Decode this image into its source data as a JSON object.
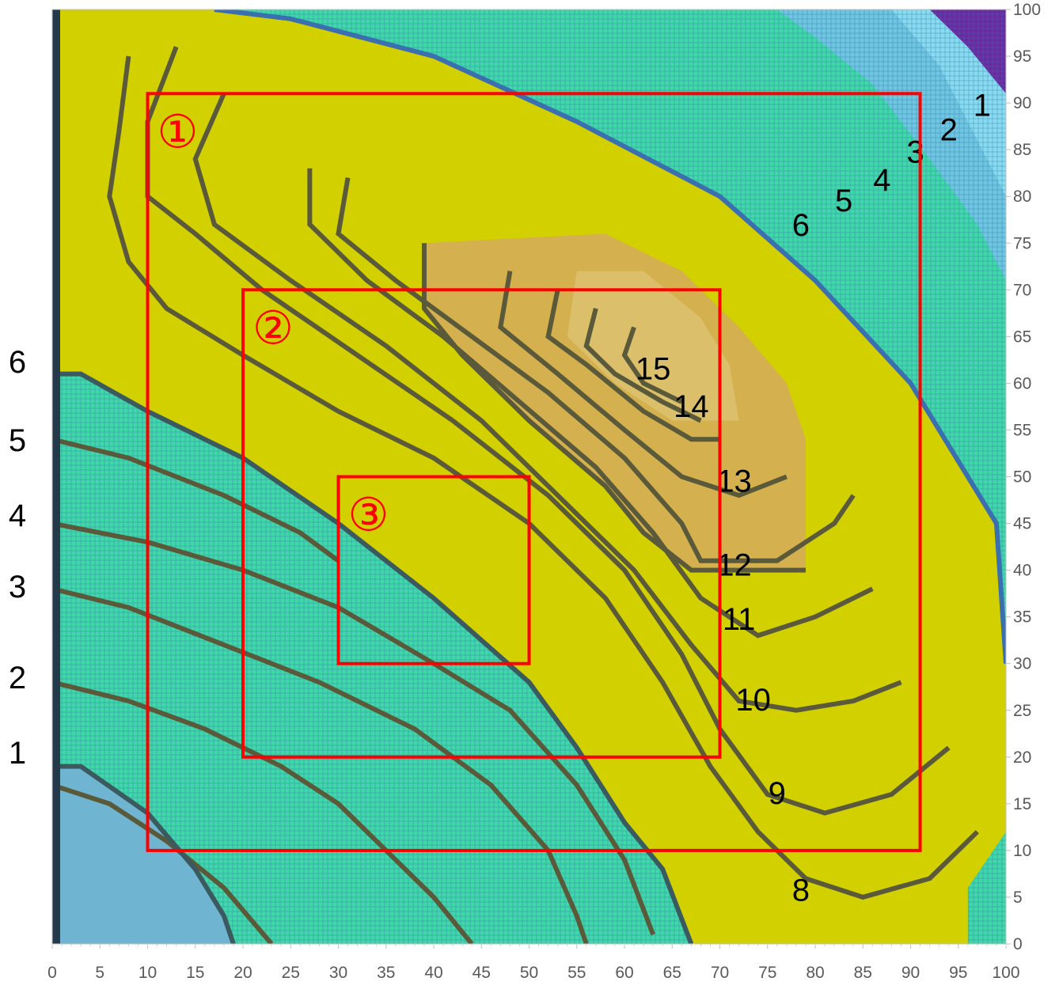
{
  "chart_data": {
    "type": "heatmap",
    "title": "",
    "xlabel": "",
    "ylabel": "",
    "xlim": [
      0,
      100
    ],
    "ylim": [
      0,
      100
    ],
    "x_ticks": [
      "0",
      "5",
      "10",
      "15",
      "20",
      "25",
      "30",
      "35",
      "40",
      "45",
      "50",
      "55",
      "60",
      "65",
      "70",
      "75",
      "80",
      "85",
      "90",
      "95",
      "100"
    ],
    "y_ticks": [
      "0",
      "5",
      "10",
      "15",
      "20",
      "25",
      "30",
      "35",
      "40",
      "45",
      "50",
      "55",
      "60",
      "65",
      "70",
      "75",
      "80",
      "85",
      "90",
      "95",
      "100"
    ],
    "levels": [
      1,
      2,
      3,
      4,
      5,
      6,
      7,
      8,
      9,
      10,
      11,
      12,
      13,
      14,
      15
    ],
    "band_colors": {
      "low_1": "#6fb5d2",
      "low_2_6": "#3fd9a8",
      "mid_7_11": "#d3d000",
      "high_12_15": "#d4b04e",
      "top_light": "#6ec7e0",
      "top_lighter": "#87dcef",
      "top_dark": "#6a2aa0",
      "contour_line": "#5a5a3a"
    },
    "contour_labels": [
      {
        "text": "1",
        "x": 97.5,
        "y": 88.6
      },
      {
        "text": "2",
        "x": 94.0,
        "y": 86.0
      },
      {
        "text": "3",
        "x": 90.5,
        "y": 83.6
      },
      {
        "text": "4",
        "x": 87.0,
        "y": 80.6
      },
      {
        "text": "5",
        "x": 83.0,
        "y": 78.4
      },
      {
        "text": "6",
        "x": 78.5,
        "y": 75.8
      },
      {
        "text": "15",
        "x": 63.0,
        "y": 60.4
      },
      {
        "text": "14",
        "x": 67.0,
        "y": 56.4
      },
      {
        "text": "13",
        "x": 71.5,
        "y": 48.4
      },
      {
        "text": "12",
        "x": 71.5,
        "y": 39.4
      },
      {
        "text": "11",
        "x": 72.0,
        "y": 33.6
      },
      {
        "text": "10",
        "x": 73.5,
        "y": 25.0
      },
      {
        "text": "9",
        "x": 76.0,
        "y": 15.0
      },
      {
        "text": "8",
        "x": 78.5,
        "y": 4.6
      }
    ],
    "left_labels": [
      "6",
      "5",
      "4",
      "3",
      "2",
      "1"
    ],
    "regions": [
      {
        "label": "①",
        "x": [
          10,
          91
        ],
        "y": [
          10,
          91
        ]
      },
      {
        "label": "②",
        "x": [
          20,
          70
        ],
        "y": [
          20,
          70
        ]
      },
      {
        "label": "③",
        "x": [
          30,
          50
        ],
        "y": [
          30,
          50
        ]
      }
    ]
  }
}
